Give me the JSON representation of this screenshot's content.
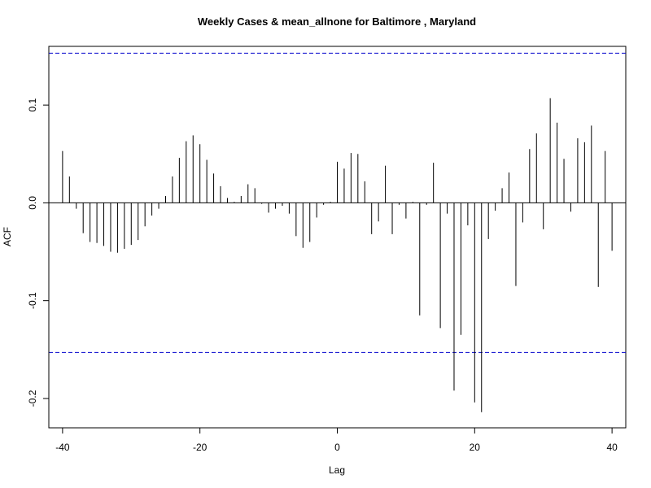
{
  "chart_data": {
    "type": "bar",
    "title": "Weekly Cases & mean_allnone for Baltimore , Maryland",
    "xlabel": "Lag",
    "ylabel": "ACF",
    "xlim": [
      -42,
      42
    ],
    "ylim": [
      -0.23,
      0.16
    ],
    "x_ticks": [
      -40,
      -20,
      0,
      20,
      40
    ],
    "x_tick_labels": [
      "-40",
      "-20",
      "0",
      "20",
      "40"
    ],
    "y_ticks": [
      -0.2,
      -0.1,
      0.0,
      0.1
    ],
    "y_tick_labels": [
      "-0.2",
      "-0.1",
      "0.0",
      "0.1"
    ],
    "confidence_bound": 0.153,
    "colors": {
      "bars": "#000000",
      "bounds": "#0000cc",
      "zero_line": "#000000"
    },
    "x": [
      -40,
      -39,
      -38,
      -37,
      -36,
      -35,
      -34,
      -33,
      -32,
      -31,
      -30,
      -29,
      -28,
      -27,
      -26,
      -25,
      -24,
      -23,
      -22,
      -21,
      -20,
      -19,
      -18,
      -17,
      -16,
      -15,
      -14,
      -13,
      -12,
      -11,
      -10,
      -9,
      -8,
      -7,
      -6,
      -5,
      -4,
      -3,
      -2,
      -1,
      0,
      1,
      2,
      3,
      4,
      5,
      6,
      7,
      8,
      9,
      10,
      11,
      12,
      13,
      14,
      15,
      16,
      17,
      18,
      19,
      20,
      21,
      22,
      23,
      24,
      25,
      26,
      27,
      28,
      29,
      30,
      31,
      32,
      33,
      34,
      35,
      36,
      37,
      38,
      39,
      40
    ],
    "values": [
      0.053,
      0.027,
      -0.006,
      -0.031,
      -0.04,
      -0.041,
      -0.044,
      -0.05,
      -0.051,
      -0.047,
      -0.043,
      -0.038,
      -0.024,
      -0.013,
      -0.006,
      0.007,
      0.027,
      0.046,
      0.063,
      0.069,
      0.06,
      0.044,
      0.03,
      0.017,
      0.005,
      0.001,
      0.007,
      0.019,
      0.015,
      -0.001,
      -0.01,
      -0.006,
      -0.003,
      -0.011,
      -0.034,
      -0.046,
      -0.04,
      -0.015,
      -0.002,
      0.001,
      0.042,
      0.035,
      0.051,
      0.05,
      0.022,
      -0.032,
      -0.019,
      0.038,
      -0.032,
      -0.002,
      -0.016,
      0.001,
      -0.115,
      -0.002,
      0.041,
      -0.128,
      -0.011,
      -0.192,
      -0.135,
      -0.023,
      -0.204,
      -0.214,
      -0.037,
      -0.008,
      0.015,
      0.031,
      -0.085,
      -0.02,
      0.055,
      0.071,
      -0.027,
      0.107,
      0.082,
      0.045,
      -0.009,
      0.066,
      0.062,
      0.079,
      -0.086,
      0.053,
      -0.049
    ]
  }
}
